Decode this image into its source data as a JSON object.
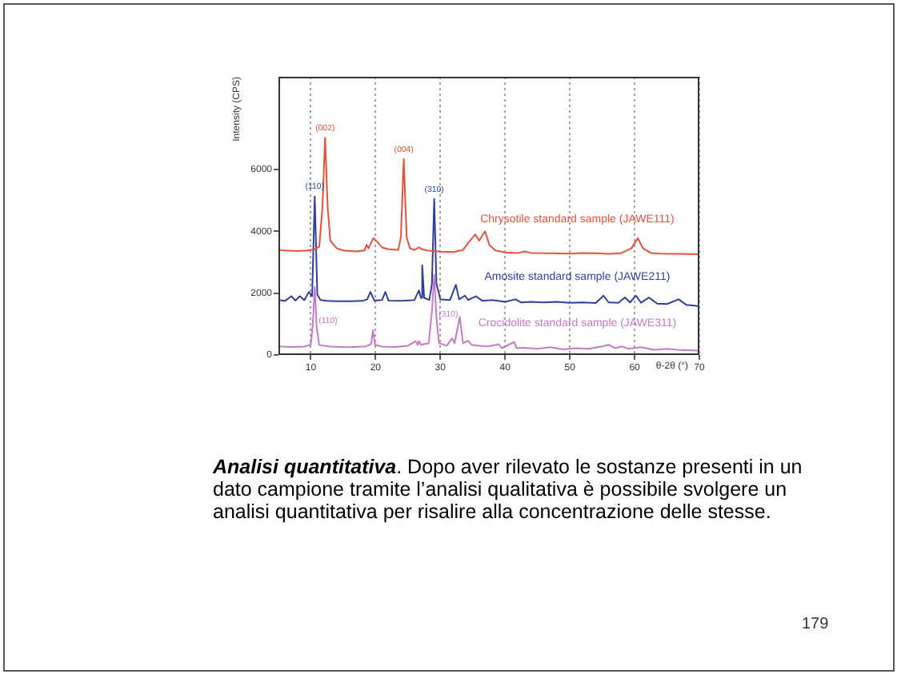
{
  "chart_data": {
    "type": "line",
    "xlabel": "θ-2θ (°)",
    "ylabel": "Intensity (CPS)",
    "xlim": [
      5,
      70
    ],
    "xticks": [
      10,
      20,
      30,
      40,
      50,
      60,
      70
    ],
    "ylim": [
      0,
      9000
    ],
    "yticks": [
      0,
      2000,
      4000,
      6000
    ],
    "grid": "x",
    "series": [
      {
        "name": "Chrysotile standard sample (JAWE111)",
        "color": "#e8503a",
        "x": [
          5,
          6,
          8,
          9.5,
          10.5,
          11.3,
          11.8,
          12.2,
          12.6,
          13,
          14,
          15,
          17,
          18.3,
          18.6,
          18.9,
          19.65,
          20.3,
          21,
          22,
          23.5,
          23.9,
          24.35,
          24.8,
          25.3,
          26,
          26.7,
          27.2,
          28,
          30,
          32,
          33.5,
          34.4,
          35.4,
          36,
          36.9,
          37.6,
          38.5,
          40,
          42,
          43,
          44,
          47,
          50,
          52,
          54,
          56,
          58,
          59.5,
          60.5,
          61.3,
          62.5,
          64,
          67,
          70
        ],
        "values": [
          3400,
          3380,
          3360,
          3380,
          3420,
          3500,
          4800,
          7030,
          4800,
          3700,
          3450,
          3380,
          3350,
          3380,
          3570,
          3450,
          3780,
          3650,
          3480,
          3420,
          3400,
          3800,
          6340,
          3800,
          3450,
          3400,
          3480,
          3420,
          3380,
          3340,
          3330,
          3400,
          3650,
          3900,
          3700,
          4000,
          3550,
          3380,
          3320,
          3300,
          3350,
          3300,
          3290,
          3280,
          3300,
          3290,
          3270,
          3300,
          3450,
          3780,
          3450,
          3300,
          3280,
          3270,
          3260
        ]
      },
      {
        "name": "Amosite standard sample (JAWE211)",
        "color": "#2e3f9f",
        "x": [
          5,
          6,
          7,
          7.6,
          8.3,
          9,
          9.7,
          10.2,
          10.6,
          11,
          11.5,
          12.5,
          14,
          16,
          18,
          18.7,
          19.2,
          19.8,
          21,
          21.5,
          22,
          24,
          26,
          26.7,
          27,
          27.2,
          27.5,
          28.3,
          28.7,
          29.05,
          29.4,
          30,
          31.5,
          32.4,
          32.9,
          33.8,
          34.3,
          35.5,
          36.5,
          38,
          40,
          41.6,
          42.5,
          44,
          46,
          48,
          50,
          52,
          54,
          55.2,
          56,
          57.5,
          58.5,
          59.3,
          60.2,
          61,
          62.2,
          63.5,
          65,
          66.8,
          68,
          70
        ],
        "values": [
          1780,
          1750,
          1900,
          1760,
          1900,
          1770,
          2040,
          1900,
          5130,
          1950,
          1780,
          1750,
          1740,
          1740,
          1750,
          1800,
          2040,
          1760,
          1780,
          2040,
          1760,
          1750,
          1780,
          2090,
          1850,
          2900,
          1850,
          1780,
          2300,
          5050,
          2300,
          1800,
          1780,
          2270,
          1800,
          1920,
          1780,
          1900,
          1750,
          1780,
          1720,
          1800,
          1700,
          1720,
          1700,
          1720,
          1690,
          1700,
          1680,
          1920,
          1700,
          1690,
          1860,
          1700,
          1920,
          1690,
          1860,
          1660,
          1650,
          1800,
          1620,
          1580
        ]
      },
      {
        "name": "Crocidolite standard sample (JAWE311)",
        "color": "#c47ac8",
        "x": [
          5,
          7,
          9,
          10,
          10.3,
          10.6,
          10.9,
          11.3,
          13,
          16,
          18.5,
          19.3,
          19.6,
          19.9,
          21,
          23,
          25,
          26.2,
          26.5,
          26.7,
          27,
          28.2,
          28.7,
          29.05,
          29.4,
          29.8,
          31,
          31.8,
          32.2,
          33,
          33.5,
          34.3,
          34.8,
          36,
          37.5,
          39,
          39.5,
          41.4,
          41.8,
          43,
          45,
          47,
          49,
          51,
          53,
          55,
          56,
          57,
          58,
          59,
          61,
          63,
          65,
          67,
          70
        ],
        "values": [
          280,
          260,
          270,
          330,
          1000,
          2200,
          900,
          320,
          270,
          250,
          280,
          350,
          800,
          330,
          270,
          260,
          300,
          450,
          320,
          450,
          330,
          380,
          1400,
          2600,
          1200,
          380,
          300,
          540,
          380,
          1230,
          380,
          460,
          330,
          300,
          280,
          350,
          220,
          420,
          220,
          230,
          200,
          250,
          180,
          220,
          200,
          280,
          330,
          220,
          280,
          200,
          250,
          170,
          200,
          160,
          140
        ]
      }
    ],
    "annotations": [
      {
        "text": "(002)",
        "x": 12.2,
        "y": 7030
      },
      {
        "text": "(004)",
        "x": 24.35,
        "y": 6340
      },
      {
        "text": "(110)",
        "x": 10.6,
        "y": 5130
      },
      {
        "text": "(310)",
        "x": 29.05,
        "y": 5050
      },
      {
        "text": "(110)",
        "x": 10.85,
        "y": 1120
      },
      {
        "text": "(310)",
        "x": 29.37,
        "y": 1320
      },
      "Analisi quantitativa",
      ". Dopo aver rilevato le sostanze presenti in un dato campione tramite l’analisi qualitativa è possibile svolgere un analisi quantitativa per risalire alla concentrazione delle stesse.",
      "179"
    ]
  }
}
